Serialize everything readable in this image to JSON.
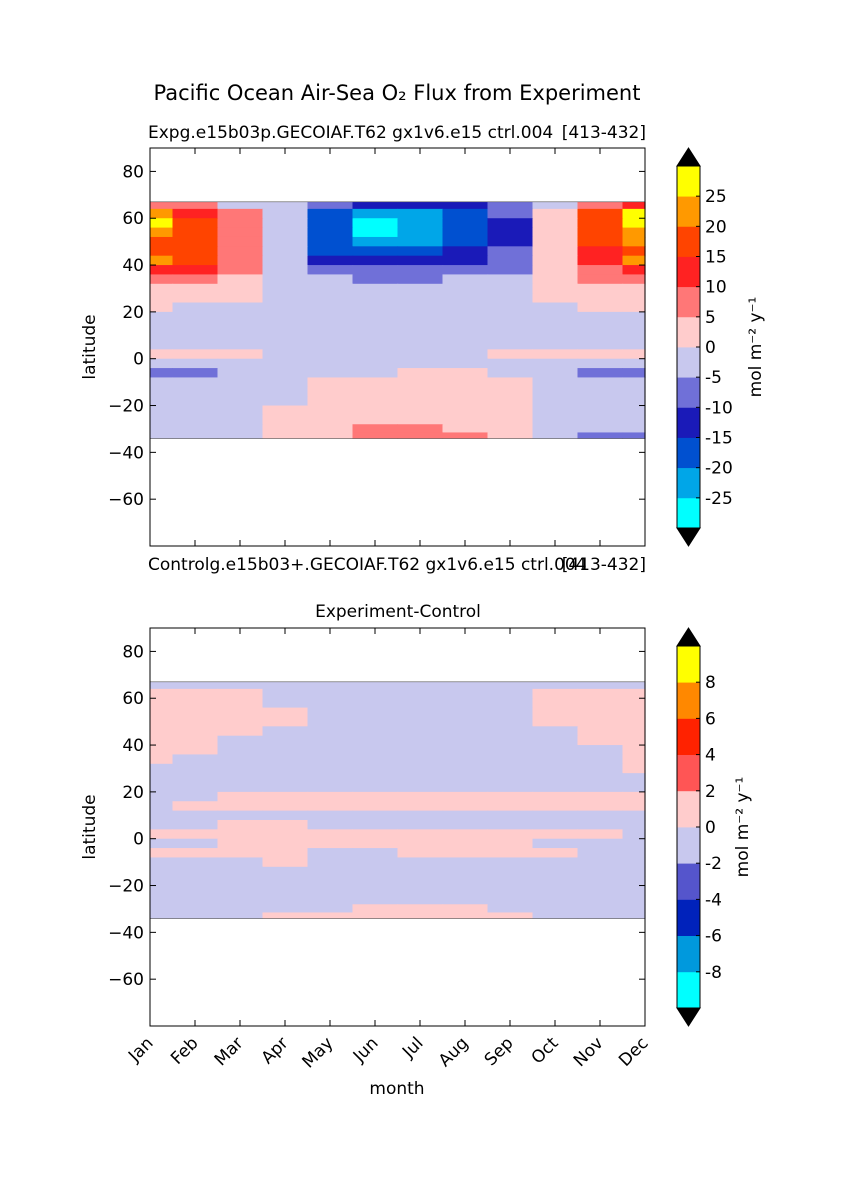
{
  "figure": {
    "suptitle": "Pacific Ocean Air-Sea O₂ Flux from Experiment"
  },
  "colors": {
    "missing": "#ffffff",
    "cbar_under": "#000000",
    "cbar_over": "#000000",
    "contour_line": "#555555"
  },
  "chart_data": [
    {
      "type": "heatmap",
      "name": "experiment",
      "title_left": "Expg.e15b03p.GECOIAF.T62 gx1v6.e15 ctrl.004",
      "title_right": "[413-432]",
      "xlabel": "",
      "ylabel": "latitude",
      "x_categories": [
        "Jan",
        "Feb",
        "Mar",
        "Apr",
        "May",
        "Jun",
        "Jul",
        "Aug",
        "Sep",
        "Oct",
        "Nov",
        "Dec"
      ],
      "xlim": [
        0,
        11
      ],
      "ylim": [
        -80,
        90
      ],
      "y_ticks": [
        80,
        60,
        40,
        20,
        0,
        -20,
        -40,
        -60
      ],
      "y_tick_labels": [
        "80",
        "60",
        "40",
        "20",
        "0",
        "−20",
        "−40",
        "−60"
      ],
      "data_lat_range": [
        -34,
        67
      ],
      "lat_grid": [
        66,
        62,
        58,
        54,
        50,
        46,
        42,
        38,
        34,
        30,
        26,
        22,
        18,
        14,
        10,
        6,
        2,
        -2,
        -6,
        -10,
        -14,
        -18,
        -22,
        -26,
        -30,
        -33
      ],
      "values": [
        [
          7,
          5,
          -4,
          -4,
          -10,
          -12,
          -14,
          -12,
          -8,
          -4,
          8,
          14
        ],
        [
          22,
          14,
          5,
          -4,
          -17,
          -23,
          -22,
          -17,
          -10,
          2,
          17,
          31
        ],
        [
          26,
          18,
          8,
          -5,
          -20,
          -27,
          -23,
          -17,
          -11,
          4,
          18,
          28
        ],
        [
          24,
          18,
          9,
          -4,
          -18,
          -27,
          -22,
          -17,
          -12,
          3,
          17,
          24
        ],
        [
          18,
          15,
          9,
          -5,
          -17,
          -25,
          -21,
          -17,
          -11,
          3,
          15,
          20
        ],
        [
          17,
          16,
          9,
          -5,
          -17,
          -19,
          -18,
          -15,
          -10,
          2,
          12,
          17
        ],
        [
          22,
          17,
          9,
          -3,
          -12,
          -14,
          -13,
          -11,
          -8,
          1,
          12,
          20
        ],
        [
          13,
          10,
          6,
          -2,
          -8,
          -9,
          -9,
          -8,
          -6,
          3,
          9,
          12
        ],
        [
          8,
          6,
          3,
          -1,
          -5,
          -6,
          -6,
          -5,
          -3,
          1,
          5,
          7
        ],
        [
          3,
          2,
          1,
          -1,
          -2,
          -3,
          -3,
          -2,
          -1,
          1,
          2,
          3
        ],
        [
          2,
          1,
          1,
          -1,
          -1,
          -2,
          -2,
          -2,
          -1,
          1,
          1,
          2
        ],
        [
          1,
          -1,
          -1,
          -1,
          -1,
          -1,
          -1,
          -1,
          -1,
          -1,
          1,
          1
        ],
        [
          -1,
          -1,
          -1,
          -1,
          -1,
          -1,
          -1,
          -1,
          -1,
          -1,
          -1,
          -1
        ],
        [
          -1,
          -1,
          -1,
          -1,
          -1,
          -1,
          -1,
          -1,
          -1,
          -1,
          -1,
          -1
        ],
        [
          -1,
          -1,
          -1,
          -1,
          -1,
          -1,
          -1,
          -1,
          -1,
          -1,
          -1,
          -1
        ],
        [
          -1,
          -1,
          -1,
          -1,
          -1,
          -1,
          -1,
          -1,
          -1,
          -1,
          -1,
          -1
        ],
        [
          1,
          1,
          1,
          -1,
          -1,
          -1,
          -1,
          -1,
          1,
          1,
          1,
          1
        ],
        [
          -2,
          -2,
          -2,
          -1,
          -1,
          -1,
          -1,
          -1,
          -1,
          -1,
          -2,
          -2
        ],
        [
          -6,
          -7,
          -5,
          -1,
          -1,
          -1,
          2,
          1,
          -1,
          -2,
          -6,
          -7
        ],
        [
          -2,
          -2,
          -1,
          -1,
          1,
          2,
          2,
          2,
          1,
          -1,
          -2,
          -2
        ],
        [
          -1,
          -1,
          -1,
          -1,
          1,
          3,
          3,
          2,
          1,
          -1,
          -1,
          -1
        ],
        [
          -1,
          -1,
          -1,
          -1,
          2,
          3,
          3,
          3,
          1,
          -1,
          -1,
          -1
        ],
        [
          -1,
          -1,
          -1,
          1,
          2,
          4,
          4,
          3,
          1,
          -1,
          -1,
          -1
        ],
        [
          -1,
          -1,
          -1,
          1,
          3,
          4,
          4,
          4,
          2,
          -1,
          -1,
          -1
        ],
        [
          -1,
          -1,
          -1,
          1,
          4,
          6,
          6,
          4,
          2,
          -1,
          -1,
          -2
        ],
        [
          -1,
          -1,
          -1,
          1,
          4,
          8,
          8,
          5,
          2,
          -1,
          -6,
          -6
        ]
      ],
      "colorbar": {
        "label": "mol m⁻² y⁻¹",
        "levels": [
          -30,
          -25,
          -20,
          -15,
          -10,
          -5,
          0,
          5,
          10,
          15,
          20,
          25,
          30
        ],
        "colors": [
          "#00ffff",
          "#00a6e8",
          "#0050d0",
          "#1a1ab8",
          "#7070d8",
          "#c8c8ee",
          "#ffcccc",
          "#ff7777",
          "#ff2222",
          "#ff4400",
          "#ff9900",
          "#ffff00"
        ],
        "tick_values": [
          -25,
          -20,
          -15,
          -10,
          -5,
          0,
          5,
          10,
          15,
          20,
          25
        ],
        "tick_labels": [
          "-25",
          "-20",
          "-15",
          "-10",
          "-5",
          "0",
          "5",
          "10",
          "15",
          "20",
          "25"
        ],
        "extend": "both"
      }
    },
    {
      "type": "heatmap",
      "name": "difference",
      "pre_title_left": "Control",
      "pre_title_mid": "g.e15b03+.GECOIAF.T62 gx1v6.e15 ctrl.004",
      "pre_title_right": "[413-432]",
      "title": "Experiment-Control",
      "xlabel": "month",
      "ylabel": "latitude",
      "x_categories": [
        "Jan",
        "Feb",
        "Mar",
        "Apr",
        "May",
        "Jun",
        "Jul",
        "Aug",
        "Sep",
        "Oct",
        "Nov",
        "Dec"
      ],
      "xlim": [
        0,
        11
      ],
      "ylim": [
        -80,
        90
      ],
      "y_ticks": [
        80,
        60,
        40,
        20,
        0,
        -20,
        -40,
        -60
      ],
      "y_tick_labels": [
        "80",
        "60",
        "40",
        "20",
        "0",
        "−20",
        "−40",
        "−60"
      ],
      "data_lat_range": [
        -34,
        67
      ],
      "lat_grid": [
        66,
        62,
        58,
        54,
        50,
        46,
        42,
        38,
        34,
        30,
        26,
        22,
        18,
        14,
        10,
        6,
        2,
        -2,
        -6,
        -10,
        -14,
        -18,
        -22,
        -26,
        -30,
        -33
      ],
      "values": [
        [
          -1,
          -1,
          -1,
          -1,
          -1,
          -1,
          -1,
          -1,
          -1,
          -1,
          -1,
          -1
        ],
        [
          1,
          1,
          1,
          -1,
          -1,
          -1,
          -1,
          -1,
          -1,
          1,
          1,
          1
        ],
        [
          1,
          1,
          1,
          -1,
          -1,
          -1,
          -1,
          -1,
          -1,
          1,
          1,
          1
        ],
        [
          1,
          1,
          1,
          1,
          -1,
          -1,
          -1,
          -1,
          -1,
          1,
          1,
          1
        ],
        [
          1,
          1,
          1,
          1,
          -1,
          -1,
          -1,
          -1,
          -1,
          1,
          1,
          1
        ],
        [
          1,
          1,
          1,
          -1,
          -1,
          -1,
          -1,
          -1,
          -1,
          -1,
          1,
          1
        ],
        [
          1,
          1,
          -1,
          -1,
          -1,
          -1,
          -1,
          -1,
          -1,
          -1,
          1,
          1
        ],
        [
          1,
          1,
          -1,
          -1,
          -1,
          -1,
          -1,
          -1,
          -1,
          -1,
          -1,
          1
        ],
        [
          1,
          -1,
          -1,
          -1,
          -1,
          -1,
          -1,
          -1,
          -1,
          -1,
          -1,
          1
        ],
        [
          -1,
          -1,
          -1,
          -1,
          -1,
          -1,
          -1,
          -1,
          -1,
          -1,
          -1,
          1
        ],
        [
          -1,
          -1,
          -1,
          -1,
          -1,
          -1,
          -1,
          -1,
          -1,
          -1,
          -1,
          -1
        ],
        [
          -1,
          -1,
          -1,
          -1,
          -1,
          -1,
          -1,
          -1,
          -1,
          -1,
          -1,
          -1
        ],
        [
          -1,
          -1,
          1,
          1,
          1,
          1,
          1,
          1,
          1,
          1,
          1,
          1
        ],
        [
          -1,
          1,
          1,
          1,
          1,
          1,
          1,
          1,
          1,
          1,
          1,
          1
        ],
        [
          -1,
          -1,
          -1,
          -1,
          -1,
          -1,
          -1,
          -1,
          -1,
          -1,
          -1,
          -1
        ],
        [
          -1,
          -1,
          1,
          1,
          -1,
          -1,
          -1,
          -1,
          -1,
          -1,
          -1,
          -1
        ],
        [
          1,
          1,
          1,
          1,
          1,
          1,
          1,
          1,
          1,
          1,
          1,
          -1
        ],
        [
          -1,
          -1,
          1,
          1,
          1,
          1,
          1,
          1,
          1,
          -1,
          -1,
          -1
        ],
        [
          1,
          1,
          1,
          1,
          -1,
          -1,
          1,
          1,
          1,
          1,
          -1,
          -1
        ],
        [
          -1,
          -1,
          -1,
          1,
          -1,
          -1,
          -1,
          -1,
          -1,
          -1,
          -1,
          -1
        ],
        [
          -1,
          -1,
          -1,
          -1,
          -1,
          -1,
          -1,
          -1,
          -1,
          -1,
          -1,
          -1
        ],
        [
          -1,
          -1,
          -1,
          -1,
          -1,
          -1,
          -1,
          -1,
          -1,
          -1,
          -1,
          -1
        ],
        [
          -1,
          -1,
          -1,
          -1,
          -1,
          -1,
          -1,
          -1,
          -1,
          -1,
          -1,
          -1
        ],
        [
          -1,
          -1,
          -1,
          -1,
          -1,
          -1,
          -1,
          -1,
          -1,
          -1,
          -1,
          -1
        ],
        [
          -1,
          -1,
          -1,
          -1,
          -1,
          1,
          1,
          1,
          -1,
          -1,
          -1,
          -1
        ],
        [
          -1,
          -1,
          -1,
          1,
          1,
          1,
          1,
          1,
          1,
          -1,
          -1,
          -1
        ]
      ],
      "colorbar": {
        "label": "mol m⁻² y⁻¹",
        "levels": [
          -10,
          -8,
          -6,
          -4,
          -2,
          0,
          2,
          4,
          6,
          8,
          10
        ],
        "colors": [
          "#00ffff",
          "#0099dd",
          "#0022bb",
          "#5555cc",
          "#c8c8ee",
          "#ffcccc",
          "#ff5555",
          "#ff2200",
          "#ff8800",
          "#ffff00"
        ],
        "tick_values": [
          -8,
          -6,
          -4,
          -2,
          0,
          2,
          4,
          6,
          8
        ],
        "tick_labels": [
          "-8",
          "-6",
          "-4",
          "-2",
          "0",
          "2",
          "4",
          "6",
          "8"
        ],
        "extend": "both"
      }
    }
  ]
}
